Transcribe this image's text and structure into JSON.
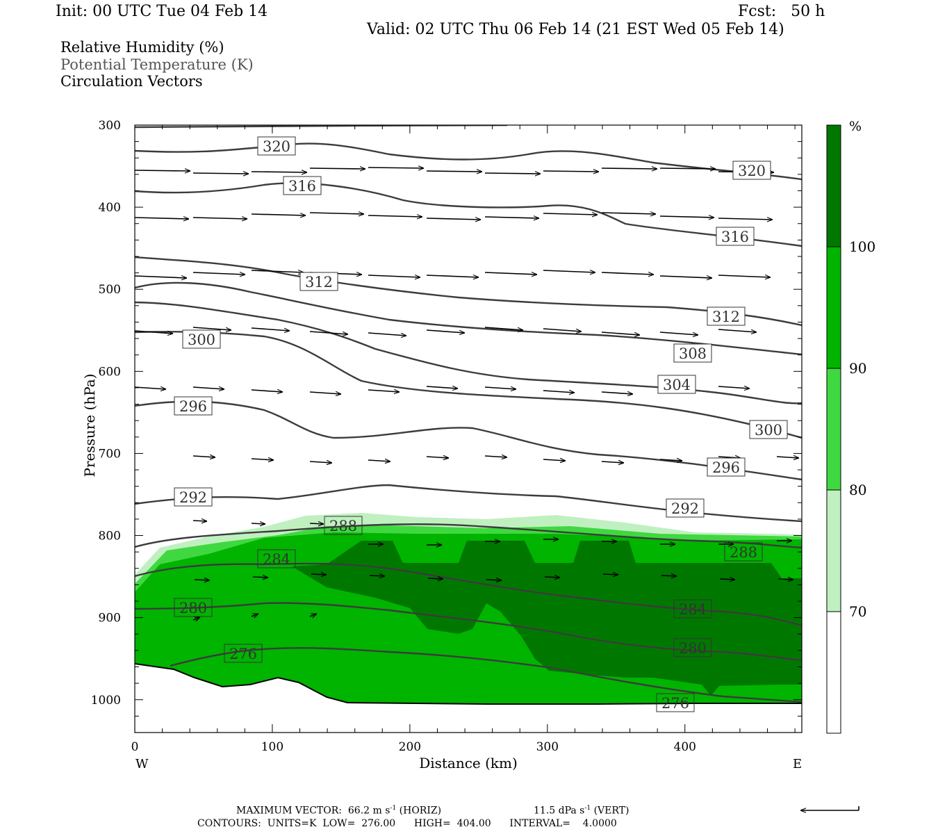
{
  "header": {
    "init": "Init: 00 UTC Tue 04 Feb 14",
    "fcst": "Fcst:   50 h",
    "valid": "Valid: 02 UTC Thu 06 Feb 14 (21 EST Wed 05 Feb 14)"
  },
  "fields": [
    "Relative Humidity (%)",
    "Potential Temperature (K)",
    "Circulation Vectors"
  ],
  "colorbar": {
    "unit": "%",
    "levels": [
      70,
      80,
      90,
      100
    ],
    "colors": [
      "#ffffff",
      "#c0f0c0",
      "#40d840",
      "#00b400",
      "#007800"
    ]
  },
  "footer": {
    "max_vector": "MAXIMUM VECTOR:  66.2 m s",
    "max_vector_unit_tail": " (HORIZ)",
    "vert_vector": "11.5 dPa s",
    "vert_vector_unit_tail": " (VERT)",
    "contours": "CONTOURS:  UNITS=K  LOW=  276.00      HIGH=  404.00      INTERVAL=    4.0000",
    "exponent": "-1"
  },
  "chart_data": {
    "type": "cross-section",
    "xlabel": "Distance (km)",
    "ylabel": "Pressure (hPa)",
    "xlim": [
      0,
      485
    ],
    "ylim": [
      1040,
      300
    ],
    "x_ticks": [
      0,
      100,
      200,
      300,
      400
    ],
    "y_ticks": [
      300,
      400,
      500,
      600,
      700,
      800,
      900,
      1000
    ],
    "x_end_labels": {
      "left": "W",
      "right": "E"
    },
    "contour_label_values": [
      320,
      320,
      316,
      316,
      312,
      312,
      308,
      304,
      300,
      300,
      296,
      296,
      292,
      292,
      288,
      288,
      284,
      284,
      280,
      280,
      276,
      276
    ],
    "theta_contours": [
      {
        "label": 320,
        "points": [
          [
            0,
            330
          ],
          [
            60,
            333
          ],
          [
            100,
            330
          ],
          [
            150,
            323
          ],
          [
            200,
            330
          ],
          [
            280,
            340
          ],
          [
            360,
            343
          ],
          [
            420,
            350
          ],
          [
            485,
            365
          ]
        ]
      },
      {
        "label": 316,
        "points": [
          [
            0,
            378
          ],
          [
            60,
            380
          ],
          [
            120,
            375
          ],
          [
            160,
            372
          ],
          [
            200,
            382
          ],
          [
            300,
            397
          ],
          [
            340,
            400
          ],
          [
            380,
            420
          ],
          [
            420,
            430
          ],
          [
            485,
            447
          ]
        ]
      },
      {
        "label": 312,
        "points": [
          [
            0,
            515
          ],
          [
            60,
            519
          ],
          [
            120,
            515
          ],
          [
            160,
            518
          ],
          [
            200,
            525
          ],
          [
            280,
            535
          ],
          [
            360,
            538
          ],
          [
            420,
            535
          ],
          [
            485,
            545
          ]
        ]
      },
      {
        "label": 308,
        "points": [
          [
            0,
            462
          ],
          [
            40,
            460
          ],
          [
            100,
            474
          ],
          [
            150,
            485
          ],
          [
            220,
            502
          ],
          [
            300,
            508
          ],
          [
            400,
            512
          ],
          [
            485,
            518
          ]
        ]
      },
      {
        "label": 304,
        "points": [
          [
            0,
            549
          ],
          [
            60,
            553
          ],
          [
            120,
            565
          ],
          [
            150,
            575
          ],
          [
            220,
            588
          ],
          [
            300,
            595
          ],
          [
            380,
            600
          ],
          [
            485,
            640
          ]
        ]
      },
      {
        "label": 300,
        "points": [
          [
            0,
            552
          ],
          [
            60,
            555
          ],
          [
            100,
            560
          ],
          [
            150,
            587
          ],
          [
            200,
            603
          ],
          [
            280,
            612
          ],
          [
            360,
            618
          ],
          [
            485,
            652
          ]
        ]
      },
      {
        "label": 296,
        "points": [
          [
            0,
            642
          ],
          [
            60,
            638
          ],
          [
            110,
            645
          ],
          [
            150,
            680
          ],
          [
            200,
            676
          ],
          [
            240,
            665
          ],
          [
            300,
            700
          ],
          [
            380,
            707
          ],
          [
            485,
            732
          ]
        ]
      },
      {
        "label": 292,
        "points": [
          [
            0,
            762
          ],
          [
            60,
            753
          ],
          [
            120,
            758
          ],
          [
            180,
            740
          ],
          [
            240,
            747
          ],
          [
            320,
            752
          ],
          [
            400,
            770
          ],
          [
            485,
            783
          ]
        ]
      },
      {
        "label": 288,
        "points": [
          [
            0,
            815
          ],
          [
            40,
            803
          ],
          [
            120,
            795
          ],
          [
            200,
            785
          ],
          [
            300,
            792
          ],
          [
            400,
            802
          ],
          [
            485,
            813
          ]
        ]
      },
      {
        "label": 284,
        "points": [
          [
            0,
            865
          ],
          [
            60,
            836
          ],
          [
            130,
            833
          ],
          [
            200,
            840
          ],
          [
            280,
            862
          ],
          [
            360,
            880
          ],
          [
            420,
            890
          ],
          [
            485,
            895
          ]
        ]
      },
      {
        "label": 280,
        "points": [
          [
            0,
            889
          ],
          [
            60,
            888
          ],
          [
            100,
            880
          ],
          [
            160,
            887
          ],
          [
            240,
            897
          ],
          [
            320,
            915
          ],
          [
            400,
            940
          ],
          [
            485,
            950
          ]
        ]
      },
      {
        "label": 276,
        "points": [
          [
            25,
            964
          ],
          [
            60,
            947
          ],
          [
            110,
            934
          ],
          [
            170,
            940
          ],
          [
            240,
            948
          ],
          [
            300,
            960
          ],
          [
            380,
            983
          ],
          [
            485,
            1005
          ]
        ]
      }
    ],
    "rh_note": "Relative humidity shaded 70-80, 80-90, 90-100, >=100 percent in the lower troposphere (about 790-1010 hPa)",
    "max_vector_horiz": 66.2,
    "max_vector_vert": 11.5,
    "contour_low": 276.0,
    "contour_high": 404.0,
    "contour_interval": 4.0
  }
}
